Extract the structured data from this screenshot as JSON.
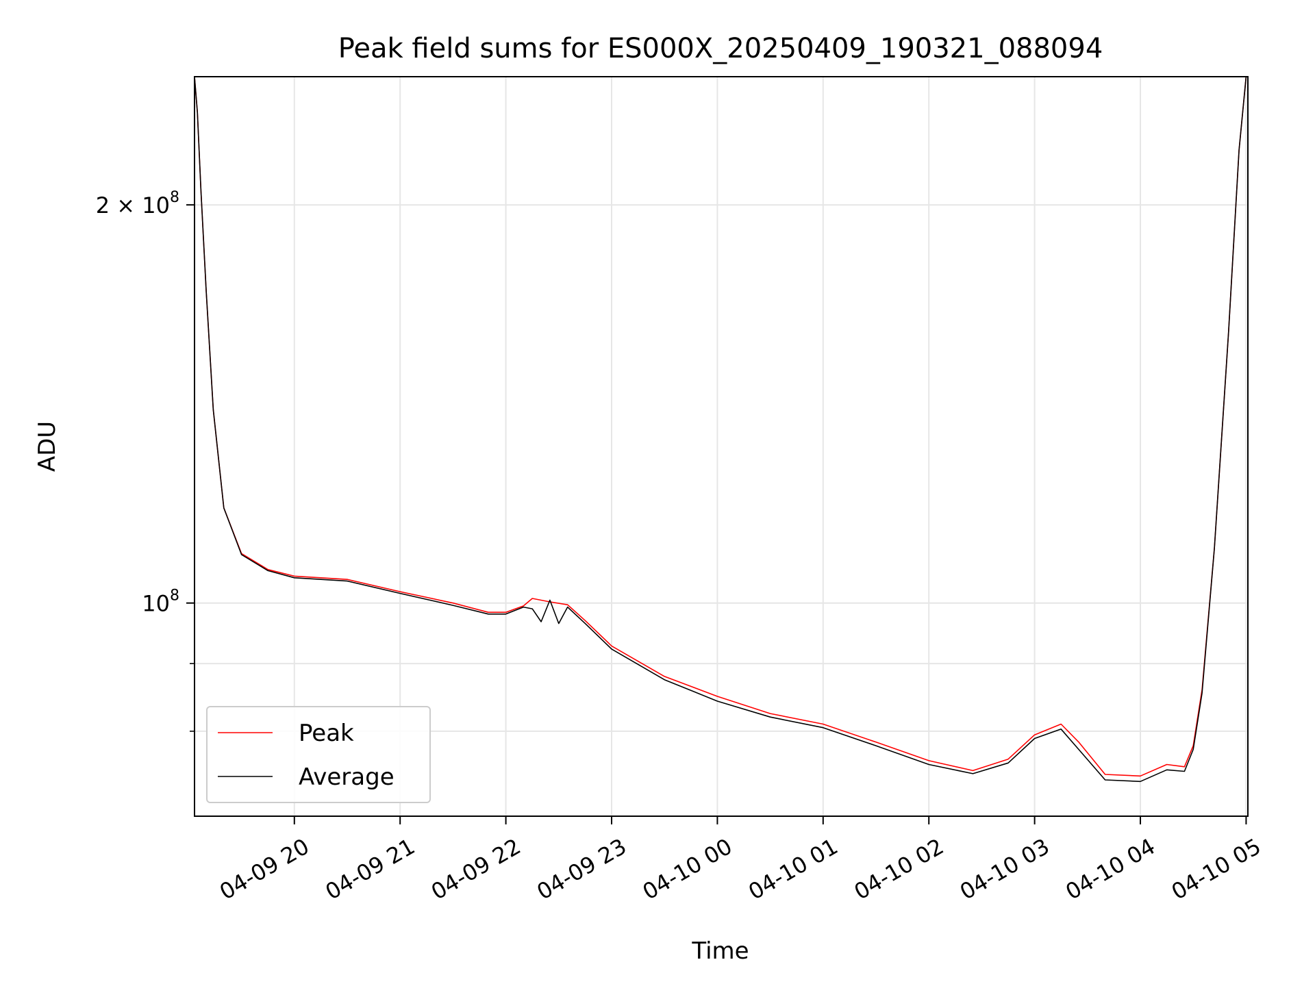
{
  "chart_data": {
    "type": "line",
    "title": "Peak field sums for ES000X_20250409_190321_088094",
    "xlabel": "Time",
    "ylabel": "ADU",
    "yscale": "log",
    "ylim": [
      69000000,
      250000000
    ],
    "xlim": [
      "2025-04-09 19:03:21",
      "2025-04-10 05:01:00"
    ],
    "grid": true,
    "legend_position": "lower-left",
    "x_ticks": [
      {
        "t": "2025-04-09 20:00",
        "label": "04-09 20"
      },
      {
        "t": "2025-04-09 21:00",
        "label": "04-09 21"
      },
      {
        "t": "2025-04-09 22:00",
        "label": "04-09 22"
      },
      {
        "t": "2025-04-09 23:00",
        "label": "04-09 23"
      },
      {
        "t": "2025-04-10 00:00",
        "label": "04-10 00"
      },
      {
        "t": "2025-04-10 01:00",
        "label": "04-10 01"
      },
      {
        "t": "2025-04-10 02:00",
        "label": "04-10 02"
      },
      {
        "t": "2025-04-10 03:00",
        "label": "04-10 03"
      },
      {
        "t": "2025-04-10 04:00",
        "label": "04-10 04"
      },
      {
        "t": "2025-04-10 05:00",
        "label": "04-10 05"
      }
    ],
    "y_ticks": [
      {
        "v": 100000000,
        "base": "10",
        "exp": "8",
        "mult": ""
      },
      {
        "v": 200000000,
        "base": "10",
        "exp": "8",
        "mult": "2 × "
      }
    ],
    "y_minor_ticks": [
      80000000,
      90000000
    ],
    "series": [
      {
        "name": "Peak",
        "color": "#ff0000",
        "points": [
          [
            "2025-04-09 19:03:21",
            250000000
          ],
          [
            "2025-04-09 19:05:00",
            235000000
          ],
          [
            "2025-04-09 19:07:00",
            205000000
          ],
          [
            "2025-04-09 19:10:00",
            172000000
          ],
          [
            "2025-04-09 19:14:00",
            140000000
          ],
          [
            "2025-04-09 19:20:00",
            118000000
          ],
          [
            "2025-04-09 19:30:00",
            109000000
          ],
          [
            "2025-04-09 19:45:00",
            106000000
          ],
          [
            "2025-04-09 20:00:00",
            104800000
          ],
          [
            "2025-04-09 20:30:00",
            104200000
          ],
          [
            "2025-04-09 21:00:00",
            102000000
          ],
          [
            "2025-04-09 21:30:00",
            100000000
          ],
          [
            "2025-04-09 21:50:00",
            98400000
          ],
          [
            "2025-04-09 22:00:00",
            98400000
          ],
          [
            "2025-04-09 22:10:00",
            99500000
          ],
          [
            "2025-04-09 22:15:00",
            100800000
          ],
          [
            "2025-04-09 22:25:00",
            100200000
          ],
          [
            "2025-04-09 22:35:00",
            99700000
          ],
          [
            "2025-04-09 22:45:00",
            97000000
          ],
          [
            "2025-04-09 23:00:00",
            92800000
          ],
          [
            "2025-04-09 23:30:00",
            88000000
          ],
          [
            "2025-04-10 00:00:00",
            85000000
          ],
          [
            "2025-04-10 00:30:00",
            82500000
          ],
          [
            "2025-04-10 01:00:00",
            81000000
          ],
          [
            "2025-04-10 01:30:00",
            78500000
          ],
          [
            "2025-04-10 02:00:00",
            76000000
          ],
          [
            "2025-04-10 02:25:00",
            74700000
          ],
          [
            "2025-04-10 02:45:00",
            76200000
          ],
          [
            "2025-04-10 03:00:00",
            79500000
          ],
          [
            "2025-04-10 03:15:00",
            81000000
          ],
          [
            "2025-04-10 03:25:00",
            78500000
          ],
          [
            "2025-04-10 03:40:00",
            74200000
          ],
          [
            "2025-04-10 04:00:00",
            74000000
          ],
          [
            "2025-04-10 04:15:00",
            75500000
          ],
          [
            "2025-04-10 04:25:00",
            75200000
          ],
          [
            "2025-04-10 04:30:00",
            78000000
          ],
          [
            "2025-04-10 04:35:00",
            86000000
          ],
          [
            "2025-04-10 04:42:00",
            110000000
          ],
          [
            "2025-04-10 04:50:00",
            160000000
          ],
          [
            "2025-04-10 04:56:00",
            220000000
          ],
          [
            "2025-04-10 05:00:00",
            250000000
          ]
        ]
      },
      {
        "name": "Average",
        "color": "#000000",
        "points": [
          [
            "2025-04-09 19:03:21",
            250000000
          ],
          [
            "2025-04-09 19:05:00",
            235000000
          ],
          [
            "2025-04-09 19:07:00",
            205000000
          ],
          [
            "2025-04-09 19:10:00",
            172000000
          ],
          [
            "2025-04-09 19:14:00",
            140000000
          ],
          [
            "2025-04-09 19:20:00",
            118000000
          ],
          [
            "2025-04-09 19:30:00",
            108800000
          ],
          [
            "2025-04-09 19:45:00",
            105800000
          ],
          [
            "2025-04-09 20:00:00",
            104500000
          ],
          [
            "2025-04-09 20:30:00",
            103900000
          ],
          [
            "2025-04-09 21:00:00",
            101700000
          ],
          [
            "2025-04-09 21:30:00",
            99600000
          ],
          [
            "2025-04-09 21:50:00",
            98100000
          ],
          [
            "2025-04-09 22:00:00",
            98100000
          ],
          [
            "2025-04-09 22:10:00",
            99300000
          ],
          [
            "2025-04-09 22:15:00",
            99000000
          ],
          [
            "2025-04-09 22:20:00",
            96800000
          ],
          [
            "2025-04-09 22:25:00",
            100500000
          ],
          [
            "2025-04-09 22:30:00",
            96500000
          ],
          [
            "2025-04-09 22:35:00",
            99300000
          ],
          [
            "2025-04-09 22:45:00",
            96500000
          ],
          [
            "2025-04-09 23:00:00",
            92300000
          ],
          [
            "2025-04-09 23:30:00",
            87500000
          ],
          [
            "2025-04-10 00:00:00",
            84300000
          ],
          [
            "2025-04-10 00:30:00",
            82000000
          ],
          [
            "2025-04-10 01:00:00",
            80500000
          ],
          [
            "2025-04-10 01:30:00",
            78000000
          ],
          [
            "2025-04-10 02:00:00",
            75500000
          ],
          [
            "2025-04-10 02:25:00",
            74300000
          ],
          [
            "2025-04-10 02:45:00",
            75700000
          ],
          [
            "2025-04-10 03:00:00",
            79000000
          ],
          [
            "2025-04-10 03:15:00",
            80300000
          ],
          [
            "2025-04-10 03:25:00",
            77500000
          ],
          [
            "2025-04-10 03:40:00",
            73500000
          ],
          [
            "2025-04-10 04:00:00",
            73300000
          ],
          [
            "2025-04-10 04:15:00",
            74800000
          ],
          [
            "2025-04-10 04:25:00",
            74600000
          ],
          [
            "2025-04-10 04:30:00",
            77500000
          ],
          [
            "2025-04-10 04:35:00",
            85500000
          ],
          [
            "2025-04-10 04:42:00",
            110000000
          ],
          [
            "2025-04-10 04:50:00",
            160000000
          ],
          [
            "2025-04-10 04:56:00",
            220000000
          ],
          [
            "2025-04-10 05:00:00",
            250000000
          ]
        ]
      }
    ]
  }
}
